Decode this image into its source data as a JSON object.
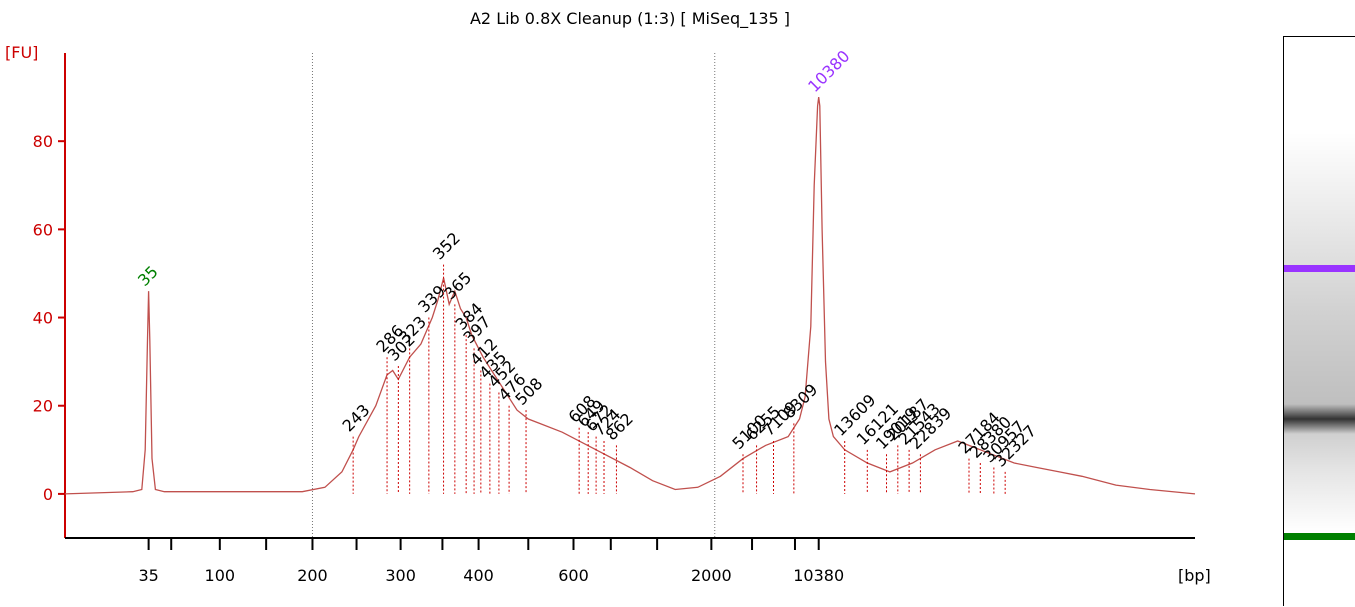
{
  "chart_data": {
    "type": "line",
    "title": "A2 Lib 0.8X Cleanup (1:3)  [ MiSeq_135 ]",
    "ylabel": "[FU]",
    "xlabel": "[bp]",
    "ylim": [
      -10,
      100
    ],
    "yticks": [
      0,
      20,
      40,
      60,
      80
    ],
    "x_tick_labels": [
      "35",
      "100",
      "200",
      "300",
      "400",
      "600",
      "2000",
      "10380"
    ],
    "x_tick_label_axis_fraction": [
      0.074,
      0.137,
      0.219,
      0.297,
      0.366,
      0.45,
      0.572,
      0.667
    ],
    "minor_tick_axis_fraction": [
      0.094,
      0.178,
      0.258,
      0.334,
      0.41,
      0.483,
      0.524,
      0.608,
      0.646
    ],
    "boundary_markers_axis_fraction": [
      0.219,
      0.575
    ],
    "grid": false,
    "series": [
      {
        "color": "#c0504d",
        "x_axis_fraction": [
          0.0,
          0.06,
          0.068,
          0.071,
          0.073,
          0.074,
          0.075,
          0.077,
          0.08,
          0.088,
          0.12,
          0.17,
          0.21,
          0.23,
          0.245,
          0.255,
          0.26,
          0.275,
          0.285,
          0.29,
          0.295,
          0.305,
          0.315,
          0.325,
          0.33,
          0.335,
          0.34,
          0.345,
          0.35,
          0.355,
          0.36,
          0.37,
          0.38,
          0.39,
          0.4,
          0.41,
          0.42,
          0.44,
          0.47,
          0.5,
          0.52,
          0.54,
          0.56,
          0.58,
          0.6,
          0.62,
          0.64,
          0.65,
          0.655,
          0.66,
          0.663,
          0.666,
          0.667,
          0.668,
          0.67,
          0.673,
          0.676,
          0.68,
          0.69,
          0.71,
          0.73,
          0.75,
          0.77,
          0.79,
          0.8,
          0.82,
          0.84,
          0.86,
          0.88,
          0.9,
          0.93,
          0.96,
          1.0
        ],
        "y": [
          0,
          0.5,
          1,
          10,
          35,
          46,
          35,
          8,
          1,
          0.5,
          0.5,
          0.5,
          0.5,
          1.5,
          5,
          10,
          13,
          20,
          27,
          28,
          26,
          31,
          34,
          40,
          44,
          49,
          43,
          46,
          42,
          40,
          36,
          31,
          27,
          23,
          19,
          17,
          16,
          14,
          10,
          6,
          3,
          1,
          1.5,
          4,
          8,
          11,
          13,
          17,
          22,
          38,
          70,
          88,
          90,
          88,
          60,
          30,
          17,
          13,
          10,
          7,
          5,
          7,
          10,
          12,
          11,
          9,
          7,
          6,
          5,
          4,
          2,
          1,
          0
        ]
      }
    ],
    "peak_labels": [
      {
        "text": "35",
        "x_axis_fraction": 0.074,
        "y": 46,
        "color": "#008000"
      },
      {
        "text": "10380",
        "x_axis_fraction": 0.667,
        "y": 90,
        "color": "#9933ff"
      },
      {
        "text": "243",
        "x_axis_fraction": 0.255,
        "y": 13,
        "color": "#000000"
      },
      {
        "text": "286",
        "x_axis_fraction": 0.285,
        "y": 31,
        "color": "#000000"
      },
      {
        "text": "302",
        "x_axis_fraction": 0.295,
        "y": 29,
        "color": "#000000"
      },
      {
        "text": "323",
        "x_axis_fraction": 0.305,
        "y": 33,
        "color": "#000000"
      },
      {
        "text": "339",
        "x_axis_fraction": 0.322,
        "y": 40,
        "color": "#000000"
      },
      {
        "text": "352",
        "x_axis_fraction": 0.335,
        "y": 52,
        "color": "#000000"
      },
      {
        "text": "365",
        "x_axis_fraction": 0.345,
        "y": 43,
        "color": "#000000"
      },
      {
        "text": "384",
        "x_axis_fraction": 0.355,
        "y": 36,
        "color": "#000000"
      },
      {
        "text": "397",
        "x_axis_fraction": 0.362,
        "y": 33,
        "color": "#000000"
      },
      {
        "text": "412",
        "x_axis_fraction": 0.368,
        "y": 28,
        "color": "#000000"
      },
      {
        "text": "435",
        "x_axis_fraction": 0.376,
        "y": 25,
        "color": "#000000"
      },
      {
        "text": "452",
        "x_axis_fraction": 0.384,
        "y": 23,
        "color": "#000000"
      },
      {
        "text": "476",
        "x_axis_fraction": 0.393,
        "y": 20,
        "color": "#000000"
      },
      {
        "text": "508",
        "x_axis_fraction": 0.408,
        "y": 19,
        "color": "#000000"
      },
      {
        "text": "608",
        "x_axis_fraction": 0.455,
        "y": 15,
        "color": "#000000"
      },
      {
        "text": "649",
        "x_axis_fraction": 0.463,
        "y": 14,
        "color": "#000000"
      },
      {
        "text": "672",
        "x_axis_fraction": 0.47,
        "y": 13,
        "color": "#000000"
      },
      {
        "text": "724",
        "x_axis_fraction": 0.477,
        "y": 12,
        "color": "#000000"
      },
      {
        "text": "862",
        "x_axis_fraction": 0.488,
        "y": 11,
        "color": "#000000"
      },
      {
        "text": "5100",
        "x_axis_fraction": 0.6,
        "y": 9,
        "color": "#000000"
      },
      {
        "text": "6255",
        "x_axis_fraction": 0.612,
        "y": 11,
        "color": "#000000"
      },
      {
        "text": "7109",
        "x_axis_fraction": 0.627,
        "y": 12,
        "color": "#000000"
      },
      {
        "text": "8309",
        "x_axis_fraction": 0.645,
        "y": 16,
        "color": "#000000"
      },
      {
        "text": "13609",
        "x_axis_fraction": 0.69,
        "y": 12,
        "color": "#000000"
      },
      {
        "text": "16121",
        "x_axis_fraction": 0.71,
        "y": 10,
        "color": "#000000"
      },
      {
        "text": "19019",
        "x_axis_fraction": 0.727,
        "y": 9,
        "color": "#000000"
      },
      {
        "text": "20187",
        "x_axis_fraction": 0.737,
        "y": 11,
        "color": "#000000"
      },
      {
        "text": "21543",
        "x_axis_fraction": 0.747,
        "y": 10,
        "color": "#000000"
      },
      {
        "text": "22839",
        "x_axis_fraction": 0.757,
        "y": 9,
        "color": "#000000"
      },
      {
        "text": "27184",
        "x_axis_fraction": 0.8,
        "y": 8,
        "color": "#000000"
      },
      {
        "text": "28380",
        "x_axis_fraction": 0.81,
        "y": 7,
        "color": "#000000"
      },
      {
        "text": "30957",
        "x_axis_fraction": 0.822,
        "y": 6,
        "color": "#000000"
      },
      {
        "text": "32327",
        "x_axis_fraction": 0.832,
        "y": 5,
        "color": "#000000"
      }
    ],
    "gel_bands": [
      {
        "color": "#9933ff",
        "position_fraction": 0.406,
        "strength": 1.0
      },
      {
        "color": "#000000",
        "position_fraction": 0.67,
        "strength": 0.75
      },
      {
        "color": "#008000",
        "position_fraction": 0.877,
        "strength": 1.0
      }
    ]
  }
}
